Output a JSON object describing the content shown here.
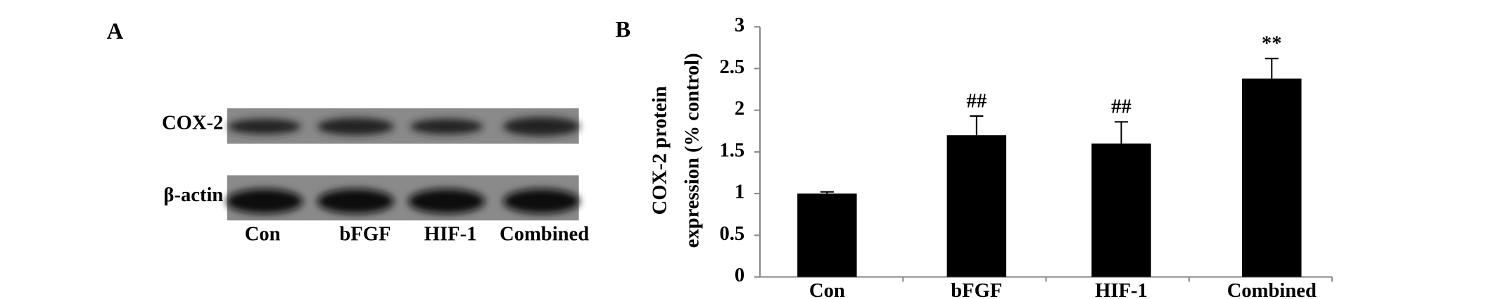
{
  "panel_a": {
    "label": "A",
    "rows": [
      "COX-2",
      "β-actin"
    ],
    "lanes": [
      "Con",
      "bFGF",
      "HIF-1",
      "Combined"
    ]
  },
  "chart_data": {
    "type": "bar",
    "panel_label": "B",
    "y_label": [
      "COX-2  protein",
      "expression (% control)"
    ],
    "categories": [
      "Con",
      "bFGF",
      "HIF-1",
      "Combined"
    ],
    "values": [
      1.0,
      1.7,
      1.6,
      2.38
    ],
    "errors": [
      0.02,
      0.23,
      0.26,
      0.24
    ],
    "annotations": [
      null,
      "##",
      "##",
      "**"
    ],
    "color": "#000000",
    "ylim": [
      0,
      3
    ],
    "yticks": [
      0,
      0.5,
      1,
      1.5,
      2,
      2.5,
      3
    ],
    "grid": false
  }
}
